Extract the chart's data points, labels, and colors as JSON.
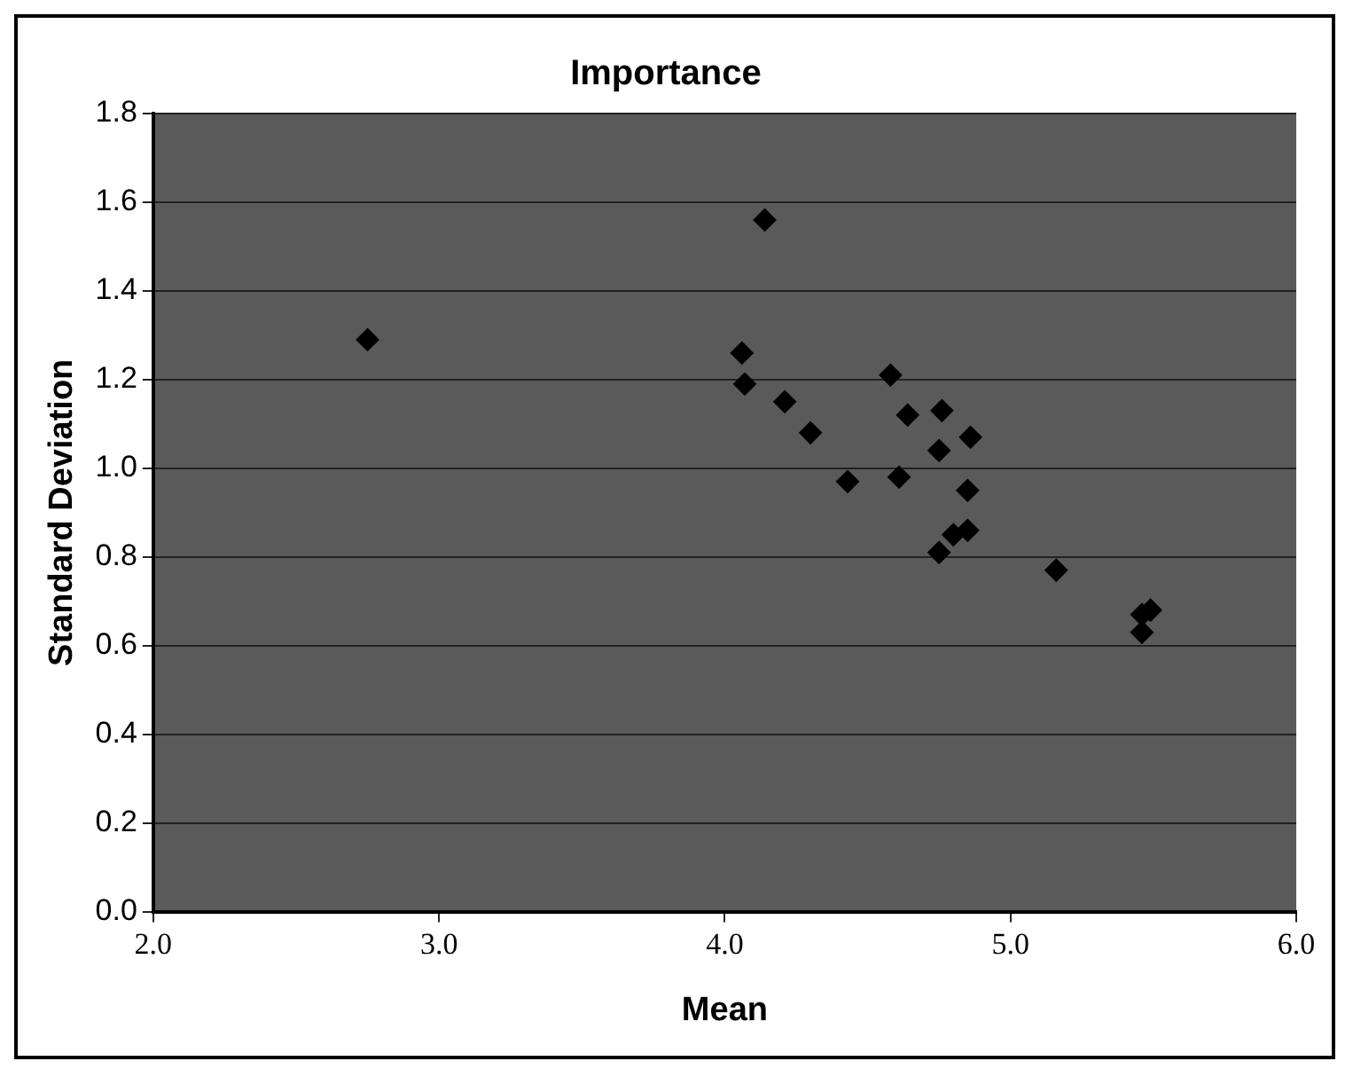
{
  "chart_data": {
    "type": "scatter",
    "title": "Importance",
    "xlabel": "Mean",
    "ylabel": "Standard Deviation",
    "x": [
      2.75,
      4.14,
      4.06,
      4.07,
      4.21,
      4.3,
      4.43,
      4.58,
      4.64,
      4.76,
      4.75,
      4.86,
      4.61,
      4.85,
      4.8,
      4.85,
      4.75,
      5.16,
      5.46,
      5.49,
      5.46
    ],
    "series": [
      {
        "color": "#000000",
        "values": [
          1.29,
          1.56,
          1.26,
          1.19,
          1.15,
          1.08,
          0.97,
          1.21,
          1.12,
          1.13,
          1.04,
          1.07,
          0.98,
          0.95,
          0.85,
          0.86,
          0.81,
          0.77,
          0.67,
          0.68,
          0.63
        ]
      }
    ],
    "xlim": [
      2,
      6
    ],
    "xticks": [
      {
        "value": 2,
        "label": "2.0"
      },
      {
        "value": 3,
        "label": "3.0"
      },
      {
        "value": 4,
        "label": "4.0"
      },
      {
        "value": 5,
        "label": "5.0"
      },
      {
        "value": 6,
        "label": "6.0"
      }
    ],
    "ylim": [
      0,
      1.8
    ],
    "yticks": [
      {
        "value": 0,
        "label": "0.0"
      },
      0.2,
      0.4,
      0.6,
      0.8,
      {
        "value": 1,
        "label": "1.0"
      },
      1.2,
      1.4,
      1.6,
      1.8
    ],
    "grid": "y",
    "marker": "diamond",
    "legend": false
  }
}
